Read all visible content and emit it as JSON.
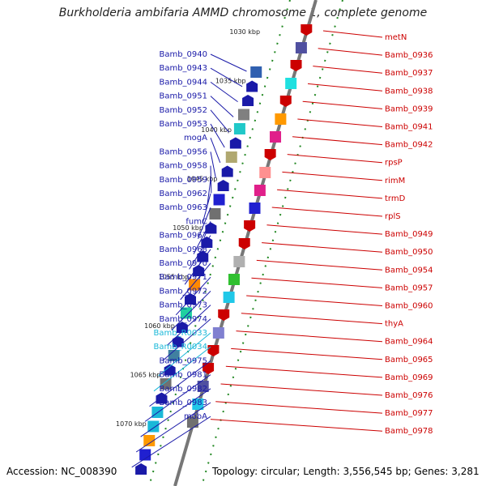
{
  "title": "Burkholderia ambifaria AMMD chromosome 1, complete genome",
  "accession": "Accession: NC_008390",
  "topology": "Topology: circular; Length: 3,556,545 bp; Genes: 3,281",
  "scale_labels": [
    "1030 kbp",
    "1035 kbp",
    "1040 kbp",
    "1045 kbp",
    "1050 kbp",
    "1055 kbp",
    "1060 kbp",
    "1065 kbp",
    "1070 kbp"
  ],
  "colors": {
    "forward": "#1a1aa8",
    "reverse": "#cc0000",
    "rna": "#1ab8d8",
    "backbone": "#888888",
    "tick": "#228822"
  },
  "left_labels": [
    {
      "text": "Bamb_0940",
      "color": "#1a1aa8"
    },
    {
      "text": "Bamb_0943",
      "color": "#1a1aa8"
    },
    {
      "text": "Bamb_0944",
      "color": "#1a1aa8"
    },
    {
      "text": "Bamb_0951",
      "color": "#1a1aa8"
    },
    {
      "text": "Bamb_0952",
      "color": "#1a1aa8"
    },
    {
      "text": "Bamb_0953",
      "color": "#1a1aa8"
    },
    {
      "text": "mogA",
      "color": "#1a1aa8"
    },
    {
      "text": "Bamb_0956",
      "color": "#1a1aa8"
    },
    {
      "text": "Bamb_0958",
      "color": "#1a1aa8"
    },
    {
      "text": "Bamb_0959",
      "color": "#1a1aa8"
    },
    {
      "text": "Bamb_0962",
      "color": "#1a1aa8"
    },
    {
      "text": "Bamb_0963",
      "color": "#1a1aa8"
    },
    {
      "text": "fumC",
      "color": "#1a1aa8"
    },
    {
      "text": "Bamb_0967",
      "color": "#1a1aa8"
    },
    {
      "text": "Bamb_0968",
      "color": "#1a1aa8"
    },
    {
      "text": "Bamb_0970",
      "color": "#1a1aa8"
    },
    {
      "text": "Bamb_0971",
      "color": "#1a1aa8"
    },
    {
      "text": "Bamb_0972",
      "color": "#1a1aa8"
    },
    {
      "text": "Bamb_0973",
      "color": "#1a1aa8"
    },
    {
      "text": "Bamb_0974",
      "color": "#1a1aa8"
    },
    {
      "text": "Bamb_R0033",
      "color": "#1ab8d8"
    },
    {
      "text": "Bamb_R0034",
      "color": "#1ab8d8"
    },
    {
      "text": "Bamb_0975",
      "color": "#1a1aa8"
    },
    {
      "text": "Bamb_0981",
      "color": "#1a1aa8"
    },
    {
      "text": "Bamb_0982",
      "color": "#1a1aa8"
    },
    {
      "text": "Bamb_0983",
      "color": "#1a1aa8"
    },
    {
      "text": "mobA",
      "color": "#1a1aa8"
    }
  ],
  "right_labels": [
    {
      "text": "metN",
      "color": "#cc0000"
    },
    {
      "text": "Bamb_0936",
      "color": "#cc0000"
    },
    {
      "text": "Bamb_0937",
      "color": "#cc0000"
    },
    {
      "text": "Bamb_0938",
      "color": "#cc0000"
    },
    {
      "text": "Bamb_0939",
      "color": "#cc0000"
    },
    {
      "text": "Bamb_0941",
      "color": "#cc0000"
    },
    {
      "text": "Bamb_0942",
      "color": "#cc0000"
    },
    {
      "text": "rpsP",
      "color": "#cc0000"
    },
    {
      "text": "rimM",
      "color": "#cc0000"
    },
    {
      "text": "trmD",
      "color": "#cc0000"
    },
    {
      "text": "rplS",
      "color": "#cc0000"
    },
    {
      "text": "Bamb_0949",
      "color": "#cc0000"
    },
    {
      "text": "Bamb_0950",
      "color": "#cc0000"
    },
    {
      "text": "Bamb_0954",
      "color": "#cc0000"
    },
    {
      "text": "Bamb_0957",
      "color": "#cc0000"
    },
    {
      "text": "Bamb_0960",
      "color": "#cc0000"
    },
    {
      "text": "thyA",
      "color": "#cc0000"
    },
    {
      "text": "Bamb_0964",
      "color": "#cc0000"
    },
    {
      "text": "Bamb_0965",
      "color": "#cc0000"
    },
    {
      "text": "Bamb_0969",
      "color": "#cc0000"
    },
    {
      "text": "Bamb_0976",
      "color": "#cc0000"
    },
    {
      "text": "Bamb_0977",
      "color": "#cc0000"
    },
    {
      "text": "Bamb_0978",
      "color": "#cc0000"
    }
  ],
  "forward_genes": [
    {
      "color": "#3060b0",
      "shape": "box"
    },
    {
      "color": "#1a1aa8",
      "shape": "arrow"
    },
    {
      "color": "#1a1aa8",
      "shape": "arrow"
    },
    {
      "color": "#808080",
      "shape": "box"
    },
    {
      "color": "#20c8c8",
      "shape": "box"
    },
    {
      "color": "#1a1aa8",
      "shape": "arrow"
    },
    {
      "color": "#b0a870",
      "shape": "box"
    },
    {
      "color": "#1a1aa8",
      "shape": "arrow"
    },
    {
      "color": "#1a1aa8",
      "shape": "arrow"
    },
    {
      "color": "#2020d0",
      "shape": "box"
    },
    {
      "color": "#707070",
      "shape": "box"
    },
    {
      "color": "#1a1aa8",
      "shape": "arrow"
    },
    {
      "color": "#1a1aa8",
      "shape": "arrow"
    },
    {
      "color": "#1a1aa8",
      "shape": "arrow"
    },
    {
      "color": "#1a1aa8",
      "shape": "arrow"
    },
    {
      "color": "#ff8800",
      "shape": "box"
    },
    {
      "color": "#1a1aa8",
      "shape": "arrow"
    },
    {
      "color": "#20d0a0",
      "shape": "box"
    },
    {
      "color": "#1a1aa8",
      "shape": "arrow"
    },
    {
      "color": "#1a1aa8",
      "shape": "arrow"
    },
    {
      "color": "#4080a0",
      "shape": "box"
    },
    {
      "color": "#1a1aa8",
      "shape": "arrow"
    },
    {
      "color": "#707070",
      "shape": "box"
    },
    {
      "color": "#1a1aa8",
      "shape": "arrow"
    },
    {
      "color": "#1ab8d8",
      "shape": "box"
    },
    {
      "color": "#1ab8d8",
      "shape": "box"
    },
    {
      "color": "#ff9900",
      "shape": "box"
    },
    {
      "color": "#2020d0",
      "shape": "box"
    },
    {
      "color": "#1a1aa8",
      "shape": "arrow"
    }
  ],
  "reverse_genes": [
    {
      "color": "#cc0000",
      "shape": "arrow"
    },
    {
      "color": "#5050a0",
      "shape": "box"
    },
    {
      "color": "#cc0000",
      "shape": "arrow"
    },
    {
      "color": "#20e0e0",
      "shape": "box"
    },
    {
      "color": "#cc0000",
      "shape": "arrow"
    },
    {
      "color": "#ff9900",
      "shape": "box"
    },
    {
      "color": "#e0208a",
      "shape": "box"
    },
    {
      "color": "#cc0000",
      "shape": "arrow"
    },
    {
      "color": "#ff9090",
      "shape": "box"
    },
    {
      "color": "#e0208a",
      "shape": "box"
    },
    {
      "color": "#2020d0",
      "shape": "box"
    },
    {
      "color": "#cc0000",
      "shape": "arrow"
    },
    {
      "color": "#cc0000",
      "shape": "arrow"
    },
    {
      "color": "#b0b0b0",
      "shape": "box"
    },
    {
      "color": "#30c030",
      "shape": "box"
    },
    {
      "color": "#20c8e8",
      "shape": "box"
    },
    {
      "color": "#cc0000",
      "shape": "arrow"
    },
    {
      "color": "#8080d0",
      "shape": "box"
    },
    {
      "color": "#cc0000",
      "shape": "arrow"
    },
    {
      "color": "#cc0000",
      "shape": "arrow"
    },
    {
      "color": "#5050a0",
      "shape": "box"
    },
    {
      "color": "#20c8e8",
      "shape": "box"
    },
    {
      "color": "#707070",
      "shape": "box"
    }
  ]
}
